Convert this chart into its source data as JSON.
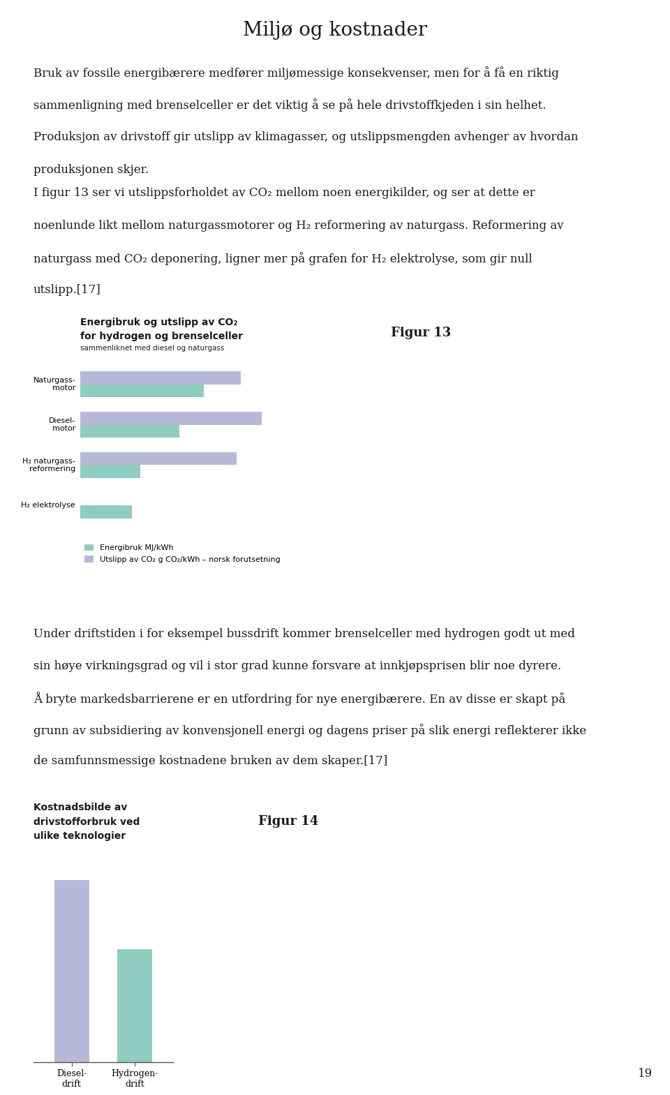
{
  "title": "Miljø og kostnader",
  "page_number": "19",
  "background_color": "#ffffff",
  "text_color": "#1a1a1a",
  "p1_lines": [
    "Bruk av fossile energibærere medfører miljømessige konsekvenser, men for å få en riktig",
    "sammenligning med brenselceller er det viktig å se på hele drivstoffkjeden i sin helhet.",
    "Produksjon av drivstoff gir utslipp av klimagasser, og utslippsmengden avhenger av hvordan",
    "produksjonen skjer."
  ],
  "p2_lines": [
    "I figur 13 ser vi utslippsforholdet av CO₂ mellom noen energikilder, og ser at dette er",
    "noenlunde likt mellom naturgassmotorer og H₂ reformering av naturgass. Reformering av",
    "naturgass med CO₂ deponering, ligner mer på grafen for H₂ elektrolyse, som gir null",
    "utslipp.[17]"
  ],
  "p3_lines": [
    "Under driftstiden i for eksempel bussdrift kommer brenselceller med hydrogen godt ut med",
    "sin høye virkningsgrad og vil i stor grad kunne forsvare at innkjøpsprisen blir noe dyrere.",
    "Å bryte markedsbarrierene er en utfordring for nye energibærere. En av disse er skapt på",
    "grunn av subsidiering av konvensjonell energi og dagens priser på slik energi reflekterer ikke",
    "de samfunnsmessige kostnadene bruken av dem skaper.[17]"
  ],
  "fig13_title1": "Energibruk og utslipp av CO₂",
  "fig13_title2": "for hydrogen og brenselceller",
  "fig13_subtitle": "sammenliknet med diesel og naturgass",
  "fig13_label": "Figur 13",
  "fig13_categories": [
    "Naturgass-\nmotor",
    "Diesel-\nmotor",
    "H₂ naturgass-\nreformering",
    "H₂ elektrolyse"
  ],
  "fig13_energibruk": [
    0.6,
    0.48,
    0.29,
    0.25
  ],
  "fig13_utslipp": [
    0.78,
    0.88,
    0.76,
    0.0
  ],
  "fig13_color_energibruk": "#8ecdc0",
  "fig13_color_utslipp": "#b8b8d8",
  "fig13_legend1": "Energibruk MJ/kWh",
  "fig13_legend2": "Utslipp av CO₂ g CO₂/kWh – norsk forutsetning",
  "fig14_title": "Kostnadsbilde av\ndrivstofforbruk ved\nulike teknologier",
  "fig14_label": "Figur 14",
  "fig14_categories": [
    "Diesel-\ndrift",
    "Hydrogen-\ndrift"
  ],
  "fig14_values": [
    1.0,
    0.62
  ],
  "fig14_colors": [
    "#b8b8d8",
    "#8ecdc0"
  ]
}
